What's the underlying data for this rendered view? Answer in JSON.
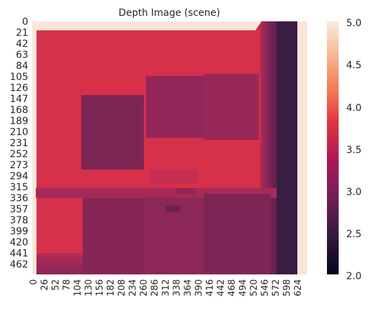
{
  "chart_data": {
    "type": "heatmap",
    "title": "Depth Image (scene)",
    "xlabel": "",
    "ylabel": "",
    "x_range": [
      0,
      640
    ],
    "y_range": [
      0,
      480
    ],
    "x_ticks": [
      "0",
      "26",
      "52",
      "78",
      "104",
      "130",
      "156",
      "182",
      "208",
      "234",
      "260",
      "286",
      "312",
      "338",
      "364",
      "390",
      "416",
      "442",
      "468",
      "494",
      "520",
      "546",
      "572",
      "598",
      "624"
    ],
    "y_ticks": [
      "0",
      "21",
      "42",
      "63",
      "84",
      "105",
      "126",
      "147",
      "168",
      "189",
      "210",
      "231",
      "252",
      "273",
      "294",
      "315",
      "336",
      "357",
      "378",
      "399",
      "420",
      "441",
      "462"
    ],
    "colorbar": {
      "min": 2.0,
      "max": 5.0,
      "ticks": [
        "2.0",
        "2.5",
        "3.0",
        "3.5",
        "4.0",
        "4.5",
        "5.0"
      ]
    },
    "colors": {
      "background_far": "#f9e6d9",
      "wall": "#d7304a",
      "cabinet_upper_left": "#7c2553",
      "cabinet_upper_mid": "#93275a",
      "cabinet_upper_right": "#982859",
      "counter_top": "#a62a59",
      "cabinet_lower": "#852657",
      "right_wall_dark": "#3e1f46"
    }
  }
}
